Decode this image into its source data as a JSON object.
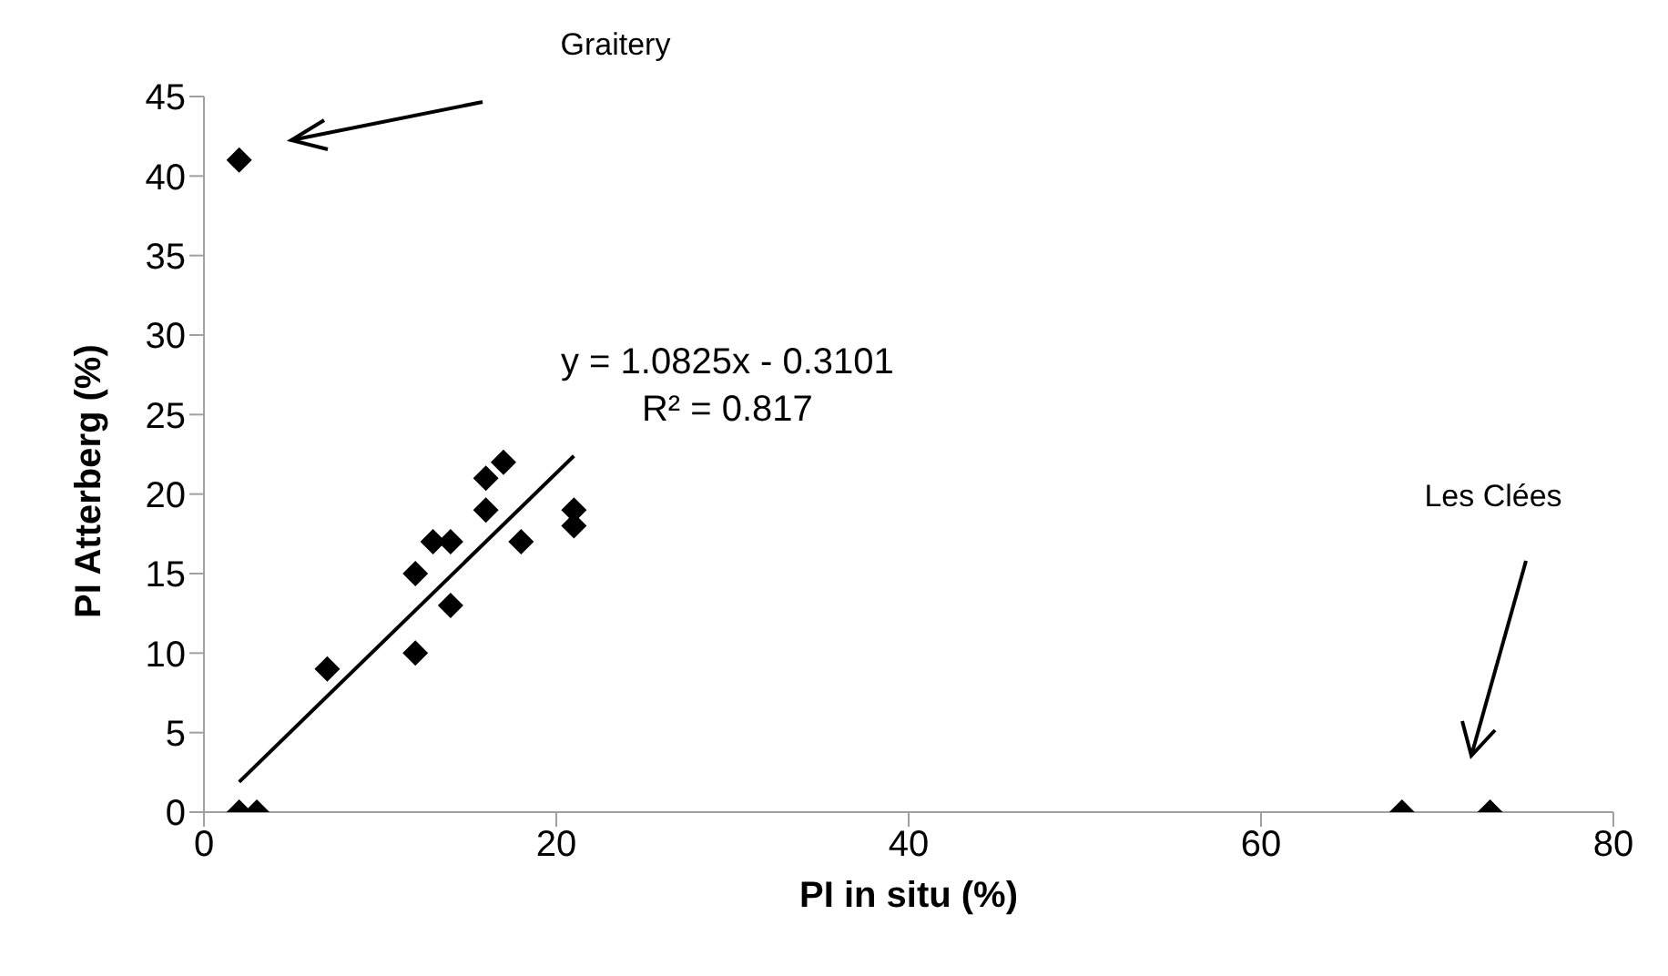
{
  "chart_data": {
    "type": "scatter",
    "xlabel": "PI in situ (%)",
    "ylabel": "PI Atterberg (%)",
    "xlim": [
      0,
      80
    ],
    "xticks": [
      0,
      20,
      40,
      60,
      80
    ],
    "ylim": [
      0,
      45
    ],
    "yticks": [
      0,
      5,
      10,
      15,
      20,
      25,
      30,
      35,
      40,
      45
    ],
    "series": [
      {
        "marker": "diamond",
        "color": "#000000",
        "x": [
          2,
          3,
          7,
          12,
          12,
          13,
          14,
          14,
          16,
          16,
          17,
          18,
          21,
          21,
          2,
          68,
          73
        ],
        "values": [
          0,
          0,
          9,
          10,
          15,
          17,
          17,
          13,
          19,
          21,
          22,
          17,
          19,
          18,
          41,
          0,
          0
        ]
      },
      {
        "type": "line",
        "marker": "none",
        "line_style": "solid",
        "color": "#000000",
        "x": [
          2,
          21
        ],
        "values": [
          1.9,
          22.4
        ]
      }
    ],
    "annotations": [
      "Graitery",
      "Les Clées",
      "y = 1.0825x - 0.3101",
      "R² = 0.817"
    ]
  }
}
